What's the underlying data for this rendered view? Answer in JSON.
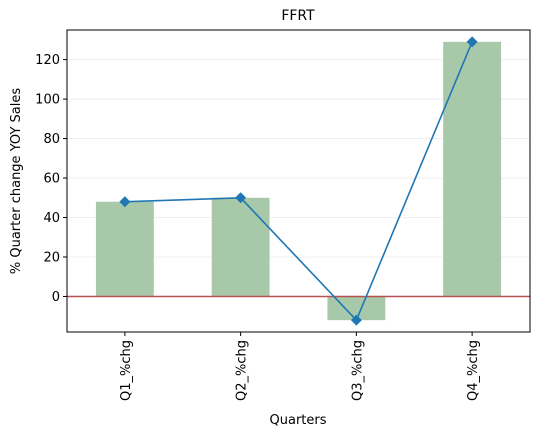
{
  "chart_data": {
    "type": "bar",
    "title": "FFRT",
    "xlabel": "Quarters",
    "ylabel": "% Quarter change YOY Sales",
    "categories": [
      "Q1_%chg",
      "Q2_%chg",
      "Q3_%chg",
      "Q4_%chg"
    ],
    "series": [
      {
        "type": "bar",
        "values": [
          48,
          50,
          -12,
          129
        ],
        "color": "#a8c9a9"
      },
      {
        "type": "line",
        "values": [
          48,
          50,
          -12,
          129
        ],
        "color": "#1f77b4",
        "marker": "diamond"
      }
    ],
    "ylim": [
      -18,
      135
    ],
    "yticks": [
      0,
      20,
      40,
      60,
      80,
      100,
      120
    ],
    "zero_line_color": "#b5514f",
    "grid": "horizontal",
    "legend": "none"
  }
}
